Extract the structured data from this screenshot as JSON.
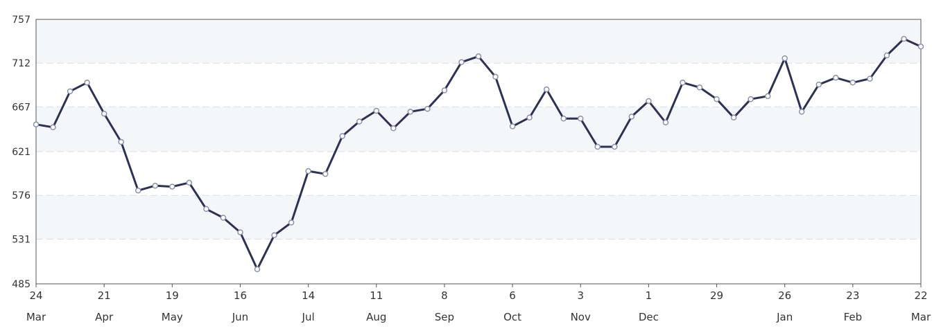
{
  "chart_data": {
    "type": "line",
    "title": "",
    "xlabel": "",
    "ylabel": "",
    "ylim": [
      485,
      757
    ],
    "yticks": [
      "757",
      "712",
      "667",
      "621",
      "576",
      "531",
      "485"
    ],
    "xticks": [
      {
        "day": "24",
        "month": "Mar"
      },
      {
        "day": "21",
        "month": "Apr"
      },
      {
        "day": "19",
        "month": "May"
      },
      {
        "day": "16",
        "month": "Jun"
      },
      {
        "day": "14",
        "month": "Jul"
      },
      {
        "day": "11",
        "month": "Aug"
      },
      {
        "day": "8",
        "month": "Sep"
      },
      {
        "day": "6",
        "month": "Oct"
      },
      {
        "day": "3",
        "month": "Nov"
      },
      {
        "day": "1",
        "month": "Dec"
      },
      {
        "day": "29",
        "month": ""
      },
      {
        "day": "26",
        "month": "Jan"
      },
      {
        "day": "23",
        "month": "Feb"
      },
      {
        "day": "22",
        "month": "Mar"
      }
    ],
    "grid": true,
    "colors": {
      "line": "#2b3157",
      "marker_fill": "#ffffff",
      "band": "#f4f7f9",
      "grid": "#d7dee6",
      "border": "#555555"
    },
    "series": [
      {
        "values": [
          649,
          646,
          683,
          692,
          660,
          631,
          581,
          586,
          585,
          589,
          562,
          553,
          538,
          500,
          535,
          548,
          601,
          598,
          637,
          652,
          663,
          645,
          662,
          665,
          684,
          713,
          719,
          698,
          647,
          656,
          685,
          655,
          655,
          626,
          626,
          657,
          673,
          651,
          692,
          687,
          675,
          656,
          675,
          678,
          717,
          662,
          690,
          697,
          692,
          696,
          720,
          737,
          729
        ]
      }
    ]
  }
}
